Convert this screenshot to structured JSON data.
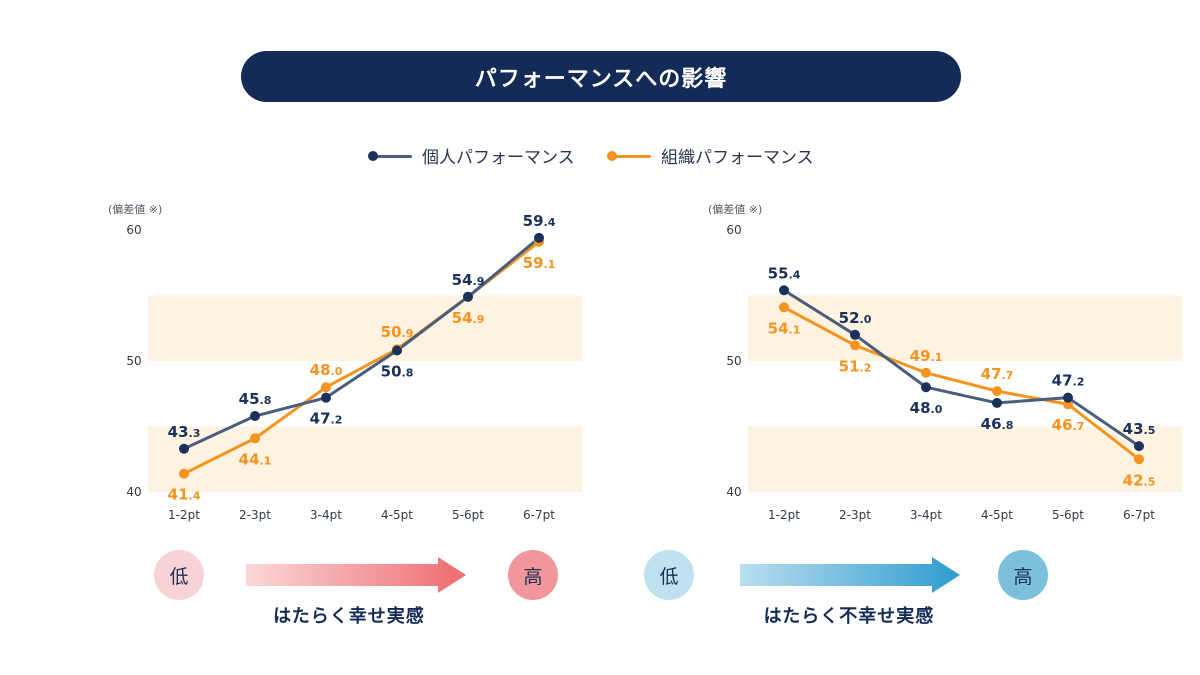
{
  "title": "パフォーマンスへの影響",
  "legend": [
    {
      "label": "個人パフォーマンス",
      "color": "#1a3159"
    },
    {
      "label": "組織パフォーマンス",
      "color": "#f5931e"
    }
  ],
  "colors": {
    "individual": "#1a3159",
    "individual_line": "#4a5d7e",
    "organization": "#f5931e",
    "band": "#fdf3e0",
    "happy_low": "#f7d3d5",
    "happy_high": "#f1979b",
    "happy_arrow_start": "#fad7d9",
    "happy_arrow_end": "#ee6b70",
    "unhappy_low": "#bfe2f0",
    "unhappy_high": "#7cc1dc",
    "unhappy_arrow_start": "#b9def0",
    "unhappy_arrow_end": "#2f9ccf"
  },
  "chart_data": [
    {
      "type": "line",
      "y_unit_label": "(偏差値 ※)",
      "ylim": [
        40,
        60
      ],
      "yticks": [
        "40",
        "50",
        "60"
      ],
      "bands": [
        [
          40,
          45
        ],
        [
          50,
          55
        ]
      ],
      "categories": [
        "1-2pt",
        "2-3pt",
        "3-4pt",
        "4-5pt",
        "5-6pt",
        "6-7pt"
      ],
      "series": [
        {
          "name": "個人パフォーマンス",
          "values": [
            43.3,
            45.8,
            47.2,
            50.8,
            54.9,
            59.4
          ],
          "label_pos": [
            "above",
            "above",
            "below",
            "below",
            "above",
            "above"
          ]
        },
        {
          "name": "組織パフォーマンス",
          "values": [
            41.4,
            44.1,
            48.0,
            50.9,
            54.9,
            59.1
          ],
          "label_pos": [
            "below",
            "below",
            "above",
            "above",
            "below",
            "below"
          ]
        }
      ],
      "scale": {
        "low": "低",
        "high": "高",
        "caption": "はたらく幸せ実感"
      }
    },
    {
      "type": "line",
      "y_unit_label": "(偏差値 ※)",
      "ylim": [
        40,
        60
      ],
      "yticks": [
        "40",
        "50",
        "60"
      ],
      "bands": [
        [
          40,
          45
        ],
        [
          50,
          55
        ]
      ],
      "categories": [
        "1-2pt",
        "2-3pt",
        "3-4pt",
        "4-5pt",
        "5-6pt",
        "6-7pt"
      ],
      "series": [
        {
          "name": "個人パフォーマンス",
          "values": [
            55.4,
            52.0,
            48.0,
            46.8,
            47.2,
            43.5
          ],
          "label_pos": [
            "above",
            "above",
            "below",
            "below",
            "above",
            "above"
          ]
        },
        {
          "name": "組織パフォーマンス",
          "values": [
            54.1,
            51.2,
            49.1,
            47.7,
            46.7,
            42.5
          ],
          "label_pos": [
            "below",
            "below",
            "above",
            "above",
            "below",
            "below"
          ]
        }
      ],
      "scale": {
        "low": "低",
        "high": "高",
        "caption": "はたらく不幸せ実感"
      }
    }
  ]
}
